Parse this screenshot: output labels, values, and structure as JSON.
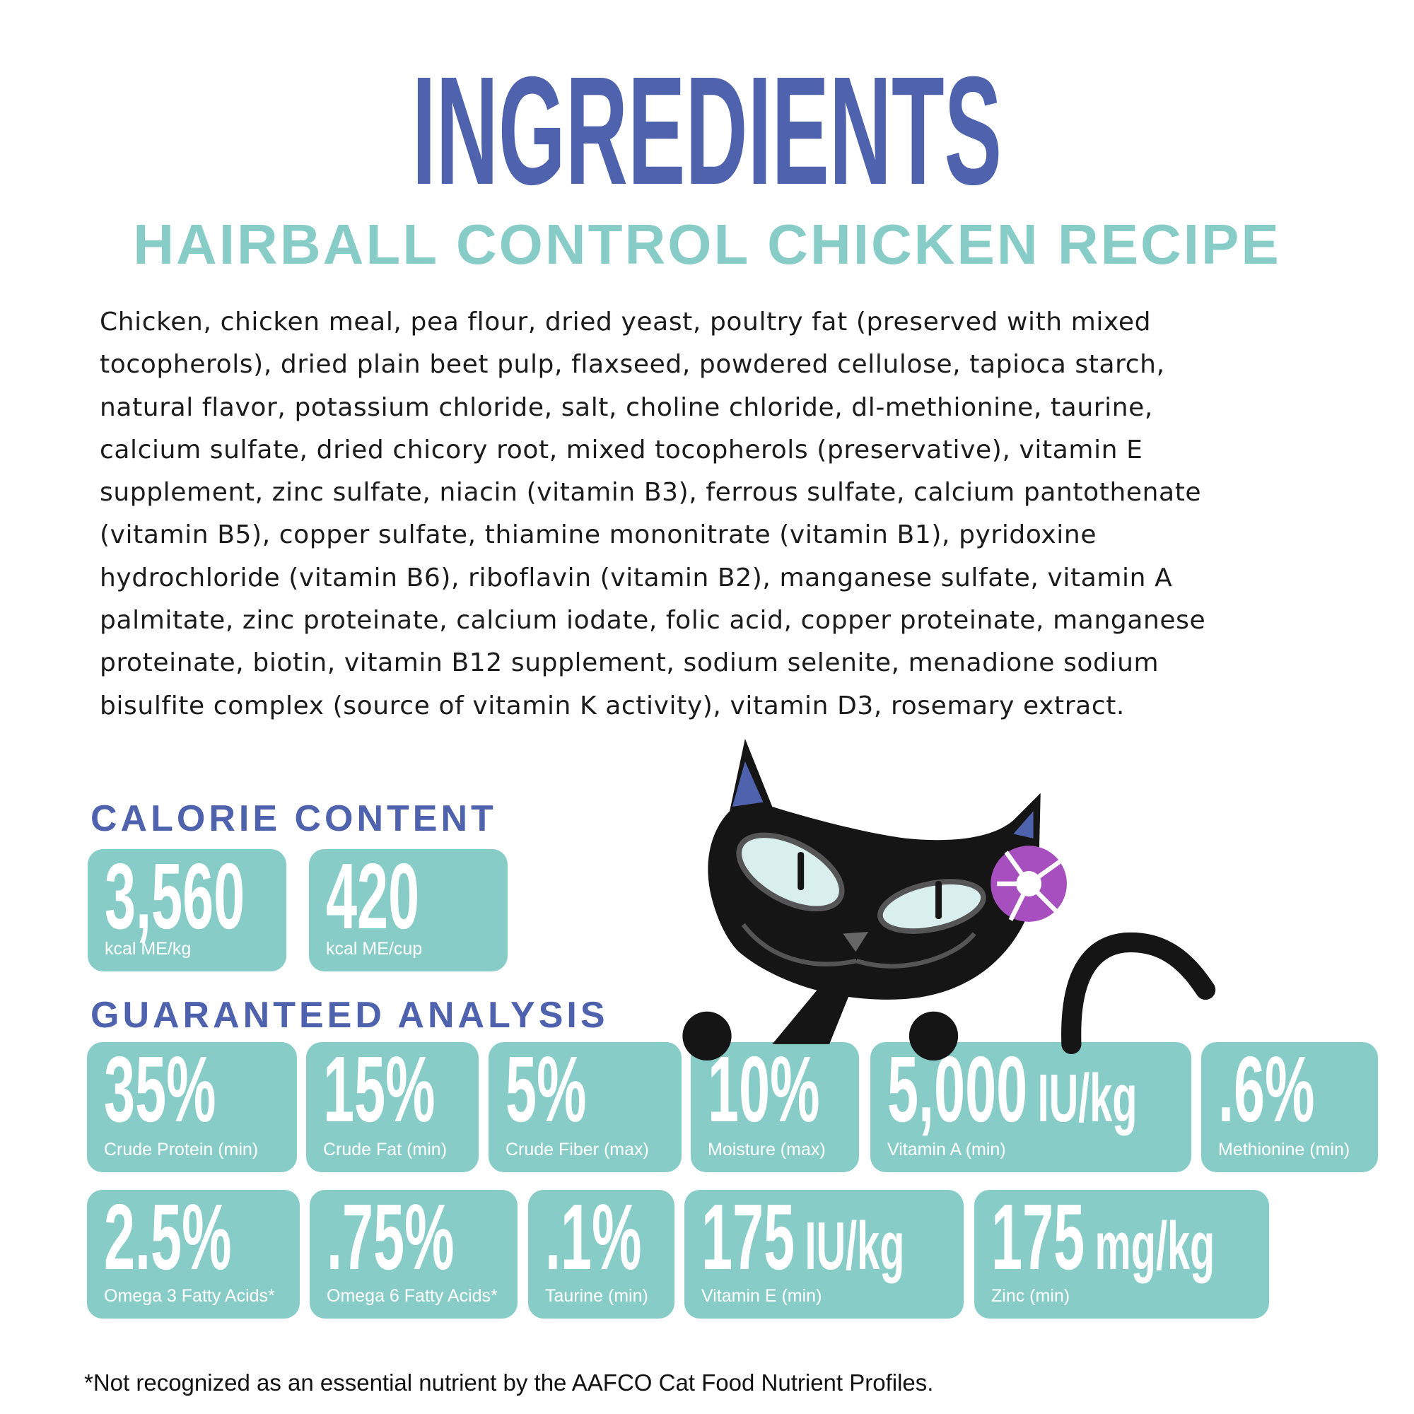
{
  "header": {
    "title": "INGREDIENTS",
    "subtitle": "HAIRBALL CONTROL CHICKEN RECIPE"
  },
  "ingredients": {
    "lines": [
      "Chicken, chicken meal, pea flour, dried yeast, poultry fat (preserved with mixed",
      "tocopherols), dried plain beet pulp, flaxseed, powdered cellulose, tapioca starch,",
      "natural flavor, potassium chloride, salt, choline chloride, dl-methionine, taurine,",
      "calcium sulfate, dried chicory root, mixed tocopherols (preservative), vitamin E",
      "supplement, zinc sulfate, niacin (vitamin B3), ferrous sulfate, calcium pantothenate",
      "(vitamin B5), copper sulfate, thiamine mononitrate (vitamin B1), pyridoxine",
      "hydrochloride (vitamin B6), riboflavin (vitamin B2), manganese sulfate, vitamin A",
      "palmitate, zinc proteinate, calcium iodate, folic acid, copper proteinate, manganese",
      "proteinate, biotin, vitamin B12 supplement, sodium selenite, menadione sodium",
      "bisulfite complex (source of vitamin K activity), vitamin D3, rosemary extract."
    ]
  },
  "calorie": {
    "heading": "CALORIE CONTENT",
    "items": [
      {
        "value": "3,560",
        "unit": "",
        "label": "kcal ME/kg"
      },
      {
        "value": "420",
        "unit": "",
        "label": "kcal ME/cup"
      }
    ]
  },
  "analysis": {
    "heading": "GUARANTEED ANALYSIS",
    "row1": [
      {
        "value": "35%",
        "unit": "",
        "label": "Crude Protein (min)"
      },
      {
        "value": "15%",
        "unit": "",
        "label": "Crude Fat (min)"
      },
      {
        "value": "5%",
        "unit": "",
        "label": "Crude Fiber (max)"
      },
      {
        "value": "10%",
        "unit": "",
        "label": "Moisture (max)"
      },
      {
        "value": "5,000",
        "unit": "IU/kg",
        "label": "Vitamin A (min)"
      },
      {
        "value": ".6%",
        "unit": "",
        "label": "Methionine (min)"
      }
    ],
    "row2": [
      {
        "value": "2.5%",
        "unit": "",
        "label": "Omega 3 Fatty Acids*"
      },
      {
        "value": ".75%",
        "unit": "",
        "label": "Omega 6 Fatty Acids*"
      },
      {
        "value": ".1%",
        "unit": "",
        "label": "Taurine (min)"
      },
      {
        "value": "175",
        "unit": "IU/kg",
        "label": "Vitamin E  (min)"
      },
      {
        "value": "175",
        "unit": "mg/kg",
        "label": "Zinc (min)"
      }
    ]
  },
  "footnote": "*Not recognized as an essential nutrient by the AAFCO Cat Food Nutrient Profiles.",
  "colors": {
    "primary": "#4f62ad",
    "accent": "#88ccc8",
    "flower": "#a84fbf",
    "cat": "#151515"
  },
  "illustration": {
    "icon": "black-cat-with-flower-icon"
  }
}
